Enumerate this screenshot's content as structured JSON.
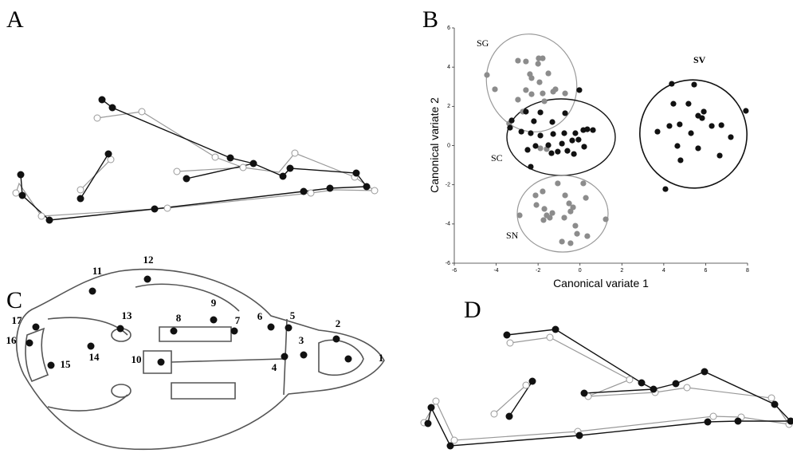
{
  "panel_labels": [
    "A",
    "B",
    "C",
    "D"
  ],
  "landmarks": [
    "1",
    "2",
    "3",
    "4",
    "5",
    "6",
    "7",
    "8",
    "9",
    "10",
    "11",
    "12",
    "13",
    "14",
    "15",
    "16",
    "17"
  ],
  "chart_data": {
    "type": "scatter",
    "x_label": "Canonical variate 1",
    "y_label": "Canonical variate 2",
    "group_labels": [
      "SG",
      "SC",
      "SN",
      "SV"
    ],
    "xlim": [
      -6,
      8
    ],
    "xticks": [
      -6,
      -4,
      -2,
      0,
      2,
      4,
      6,
      8
    ],
    "ylim": [
      -6,
      6
    ],
    "yticks": [
      -6,
      -4,
      -2,
      0,
      2,
      4,
      6
    ],
    "series": [
      {
        "color": "#8c8c8c",
        "x": [
          -4.44,
          -4.06,
          -2.96,
          -2.58,
          -1.97,
          -1.78,
          -2.0,
          -2.39,
          -2.31,
          -1.51,
          -1.93,
          -2.58,
          -2.31,
          -1.78,
          -1.28,
          -0.71,
          -1.7,
          -2.73,
          -3.38,
          -1.89,
          -1.59,
          -1.17,
          -2.96,
          -2.88,
          -2.12,
          -1.78,
          -2.08,
          -1.7,
          -1.59,
          -1.44,
          -1.74,
          -1.32,
          -1.06,
          -0.71,
          -0.52,
          -0.45,
          -0.33,
          -0.22,
          -0.14,
          -0.86,
          -0.45,
          0.35,
          0.28,
          0.16,
          1.23,
          -0.75
        ],
        "y": [
          3.6,
          2.87,
          4.33,
          4.29,
          4.45,
          4.45,
          4.17,
          3.64,
          3.44,
          3.68,
          3.23,
          2.83,
          2.62,
          2.66,
          2.75,
          2.66,
          2.26,
          1.73,
          1.12,
          -0.14,
          -0.18,
          2.87,
          2.34,
          -3.56,
          -2.54,
          -2.34,
          -3.03,
          -3.23,
          -3.56,
          -3.68,
          -3.8,
          -3.44,
          -1.93,
          -2.54,
          -2.95,
          -3.36,
          -3.15,
          -4.09,
          -4.5,
          -4.9,
          -4.98,
          -4.62,
          -2.67,
          -1.93,
          -3.76,
          -3.68
        ]
      },
      {
        "color": "#111111",
        "x": [
          -3.26,
          -3.34,
          -2.58,
          -1.89,
          -0.71,
          -0.03,
          -2.2,
          -1.32,
          -2.8,
          -2.35,
          -1.89,
          -1.28,
          -0.75,
          -0.22,
          0.16,
          0.35,
          0.62,
          -0.07,
          -0.37,
          -0.86,
          -1.51,
          -2.12,
          -2.5,
          -1.06,
          -0.6,
          -0.29,
          0.2,
          -1.36,
          -2.35,
          4.38,
          5.45,
          4.46,
          5.18,
          5.64,
          5.83,
          5.91,
          7.92,
          6.29,
          6.75,
          4.76,
          4.27,
          3.7,
          5.3,
          4.65,
          5.64,
          7.2,
          6.67,
          4.8,
          4.08
        ],
        "y": [
          1.28,
          0.91,
          1.73,
          1.69,
          1.65,
          2.83,
          1.24,
          1.2,
          0.71,
          0.63,
          0.51,
          0.59,
          0.63,
          0.63,
          0.79,
          0.83,
          0.79,
          0.3,
          0.26,
          0.1,
          0.02,
          -0.02,
          -0.22,
          -0.31,
          -0.27,
          -0.43,
          -0.06,
          -0.39,
          -1.08,
          3.15,
          3.11,
          2.13,
          2.13,
          1.52,
          1.4,
          1.73,
          1.77,
          1.0,
          1.04,
          1.08,
          1.0,
          0.71,
          0.63,
          -0.02,
          -0.14,
          0.43,
          -0.51,
          -0.75,
          -2.22
        ]
      }
    ]
  }
}
